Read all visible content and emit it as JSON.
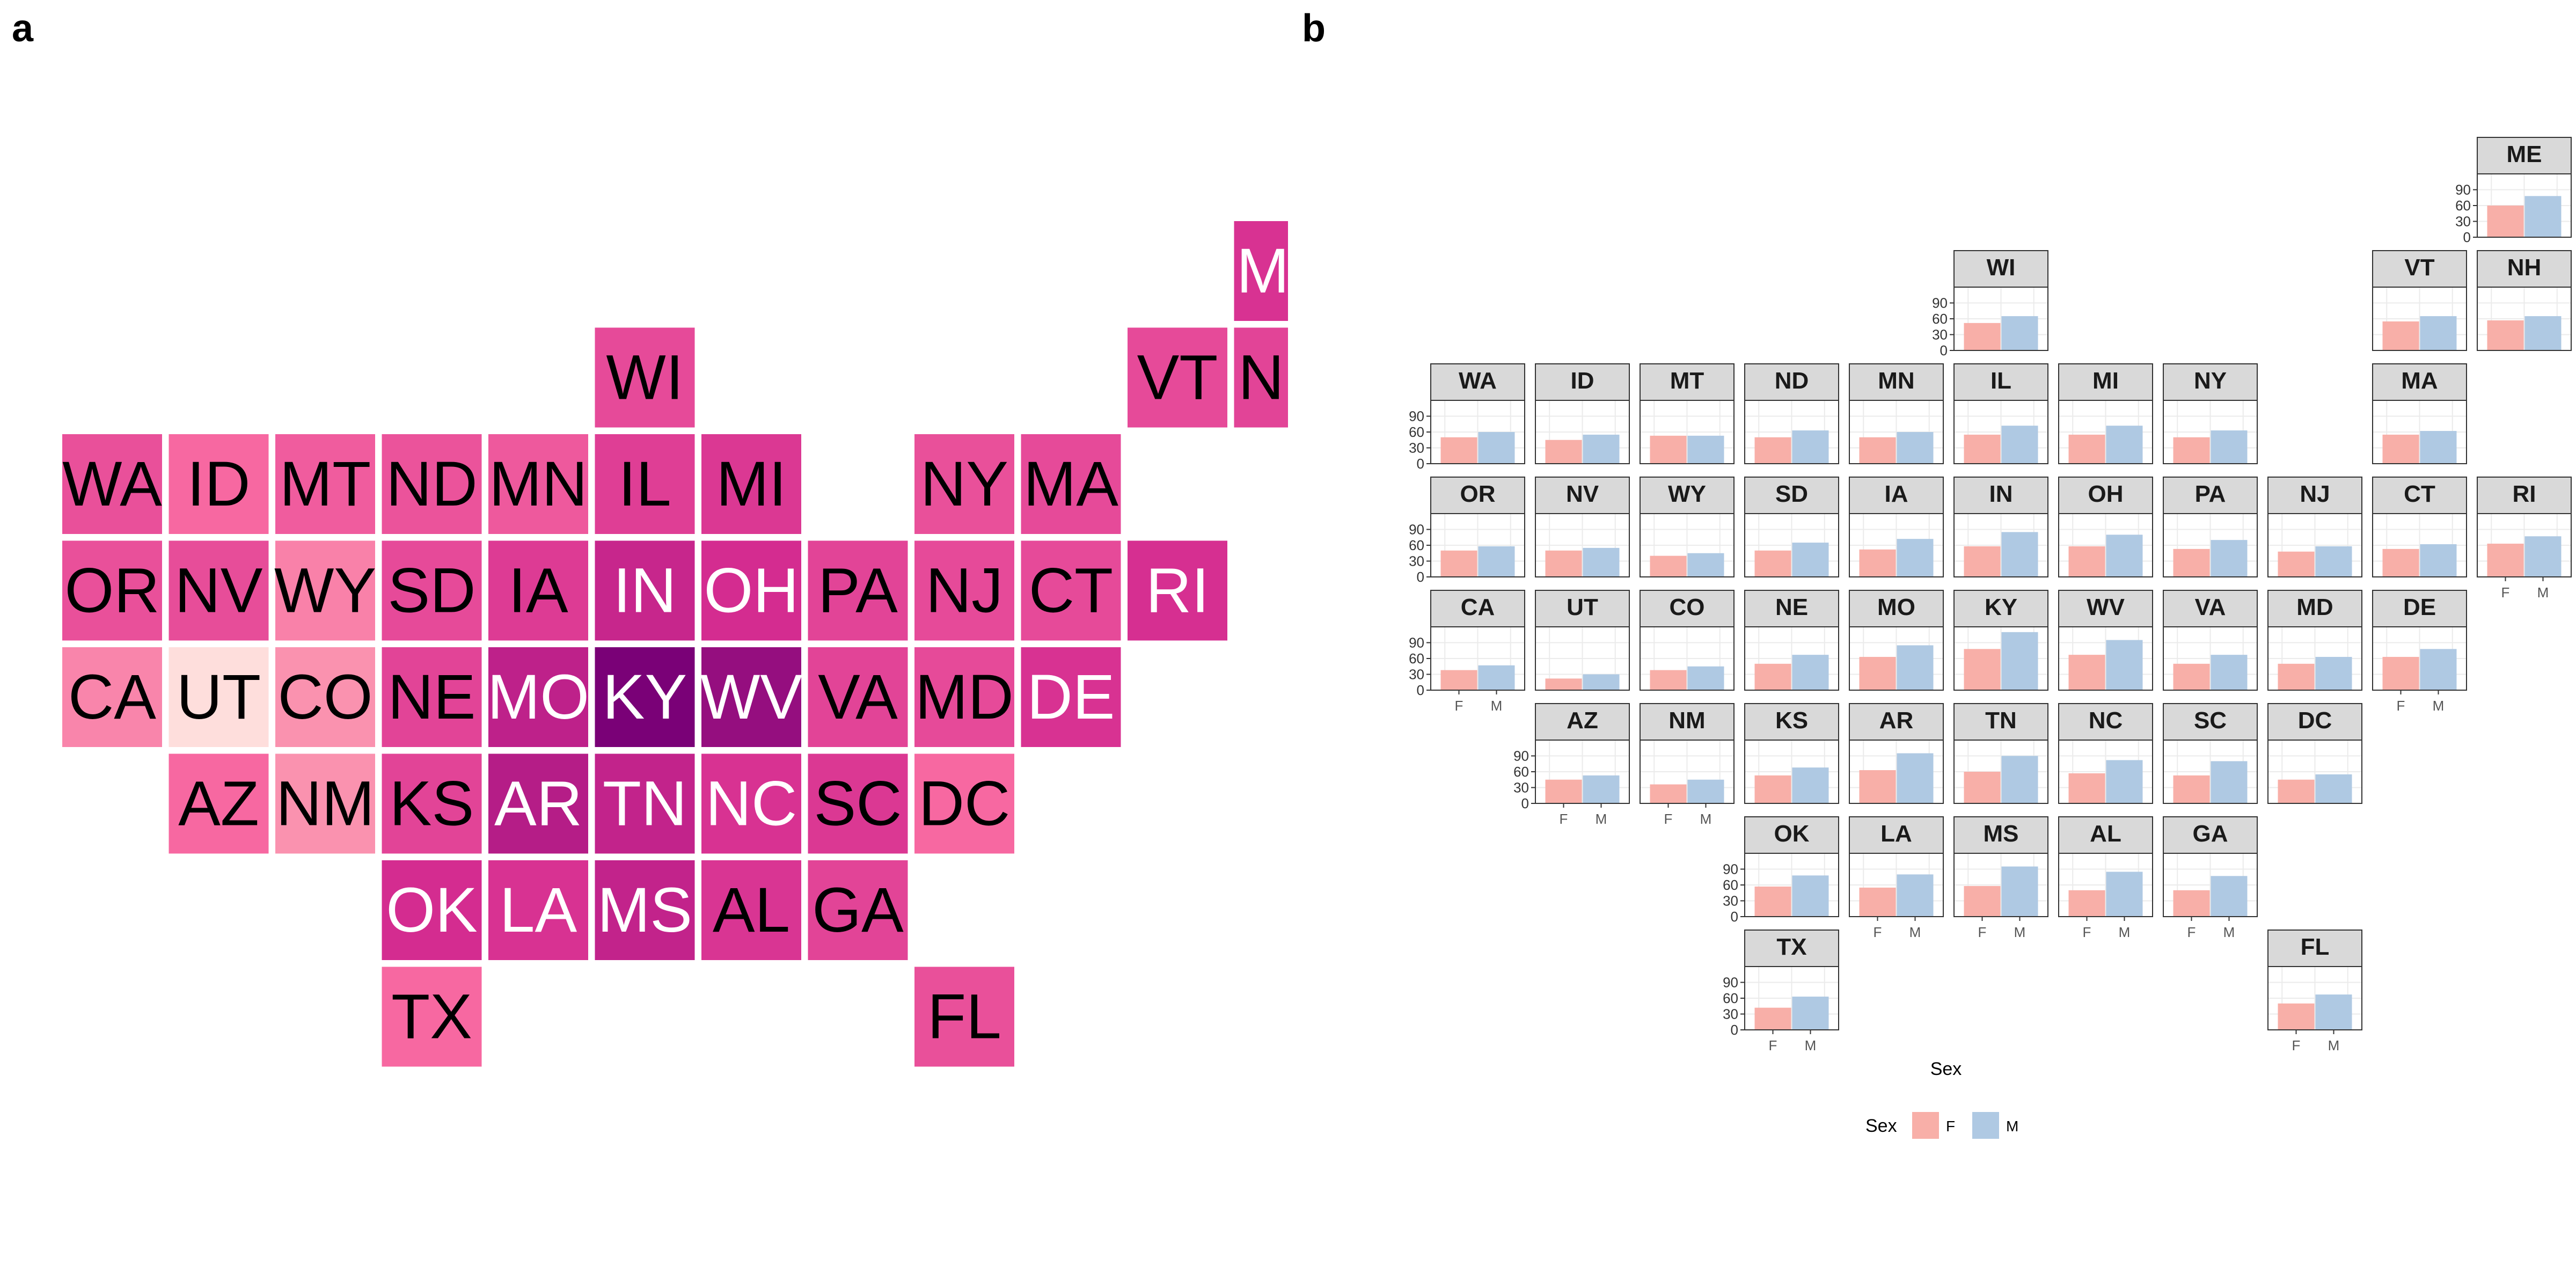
{
  "panel_labels": {
    "a": "a",
    "b": "b"
  },
  "colors": {
    "female": "#F8AFA8",
    "male": "#AFC9E3",
    "strip_bg": "#D9D9D9",
    "grid": "#EBEBEB"
  },
  "chart_data": [
    {
      "type": "heatmap",
      "panel": "a",
      "cells": [
        {
          "state": "ME",
          "col": 11,
          "row": 0,
          "value": 58
        },
        {
          "state": "WI",
          "col": 5,
          "row": 1,
          "value": 50
        },
        {
          "state": "VT",
          "col": 10,
          "row": 1,
          "value": 50
        },
        {
          "state": "NH",
          "col": 11,
          "row": 1,
          "value": 52
        },
        {
          "state": "WA",
          "col": 0,
          "row": 2,
          "value": 48
        },
        {
          "state": "ID",
          "col": 1,
          "row": 2,
          "value": 40
        },
        {
          "state": "MT",
          "col": 2,
          "row": 2,
          "value": 44
        },
        {
          "state": "ND",
          "col": 3,
          "row": 2,
          "value": 47
        },
        {
          "state": "MN",
          "col": 4,
          "row": 2,
          "value": 45
        },
        {
          "state": "IL",
          "col": 5,
          "row": 2,
          "value": 54
        },
        {
          "state": "MI",
          "col": 6,
          "row": 2,
          "value": 56
        },
        {
          "state": "NY",
          "col": 8,
          "row": 2,
          "value": 48
        },
        {
          "state": "MA",
          "col": 9,
          "row": 2,
          "value": 50
        },
        {
          "state": "OR",
          "col": 0,
          "row": 3,
          "value": 48
        },
        {
          "state": "NV",
          "col": 1,
          "row": 3,
          "value": 49
        },
        {
          "state": "WY",
          "col": 2,
          "row": 3,
          "value": 34
        },
        {
          "state": "SD",
          "col": 3,
          "row": 3,
          "value": 50
        },
        {
          "state": "IA",
          "col": 4,
          "row": 3,
          "value": 55
        },
        {
          "state": "IN",
          "col": 5,
          "row": 3,
          "value": 63
        },
        {
          "state": "OH",
          "col": 6,
          "row": 3,
          "value": 60
        },
        {
          "state": "PA",
          "col": 7,
          "row": 3,
          "value": 52
        },
        {
          "state": "NJ",
          "col": 8,
          "row": 3,
          "value": 50
        },
        {
          "state": "CT",
          "col": 9,
          "row": 3,
          "value": 50
        },
        {
          "state": "RI",
          "col": 10,
          "row": 3,
          "value": 59
        },
        {
          "state": "CA",
          "col": 0,
          "row": 4,
          "value": 33
        },
        {
          "state": "UT",
          "col": 1,
          "row": 4,
          "value": 8
        },
        {
          "state": "CO",
          "col": 2,
          "row": 4,
          "value": 30
        },
        {
          "state": "NE",
          "col": 3,
          "row": 4,
          "value": 52
        },
        {
          "state": "MO",
          "col": 4,
          "row": 4,
          "value": 65
        },
        {
          "state": "KY",
          "col": 5,
          "row": 4,
          "value": 80
        },
        {
          "state": "WV",
          "col": 6,
          "row": 4,
          "value": 74
        },
        {
          "state": "VA",
          "col": 7,
          "row": 4,
          "value": 52
        },
        {
          "state": "MD",
          "col": 8,
          "row": 4,
          "value": 50
        },
        {
          "state": "DE",
          "col": 9,
          "row": 4,
          "value": 58
        },
        {
          "state": "AZ",
          "col": 1,
          "row": 5,
          "value": 40
        },
        {
          "state": "NM",
          "col": 2,
          "row": 5,
          "value": 30
        },
        {
          "state": "KS",
          "col": 3,
          "row": 5,
          "value": 52
        },
        {
          "state": "AR",
          "col": 4,
          "row": 5,
          "value": 67
        },
        {
          "state": "TN",
          "col": 5,
          "row": 5,
          "value": 64
        },
        {
          "state": "NC",
          "col": 6,
          "row": 5,
          "value": 58
        },
        {
          "state": "SC",
          "col": 7,
          "row": 5,
          "value": 56
        },
        {
          "state": "DC",
          "col": 8,
          "row": 5,
          "value": 40
        },
        {
          "state": "OK",
          "col": 3,
          "row": 6,
          "value": 60
        },
        {
          "state": "LA",
          "col": 4,
          "row": 6,
          "value": 58
        },
        {
          "state": "MS",
          "col": 5,
          "row": 6,
          "value": 64
        },
        {
          "state": "AL",
          "col": 6,
          "row": 6,
          "value": 57
        },
        {
          "state": "GA",
          "col": 7,
          "row": 6,
          "value": 52
        },
        {
          "state": "TX",
          "col": 3,
          "row": 7,
          "value": 40
        },
        {
          "state": "FL",
          "col": 8,
          "row": 7,
          "value": 48
        }
      ],
      "value_range": [
        0,
        80
      ]
    },
    {
      "type": "bar",
      "panel": "b",
      "categories": [
        "F",
        "M"
      ],
      "xlabel": "Sex",
      "ylabel": "",
      "ylim": [
        0,
        120
      ],
      "yticks": [
        0,
        30,
        60,
        90
      ],
      "legend": {
        "title": "Sex",
        "entries": [
          "F",
          "M"
        ],
        "position": "bottom"
      },
      "facets": [
        {
          "state": "ME",
          "col": 10,
          "row": 0,
          "values": [
            60,
            78
          ],
          "show_y": true,
          "show_x": false
        },
        {
          "state": "WI",
          "col": 5,
          "row": 1,
          "values": [
            52,
            65
          ],
          "show_y": true,
          "show_x": false
        },
        {
          "state": "VT",
          "col": 9,
          "row": 1,
          "values": [
            55,
            65
          ],
          "show_y": false,
          "show_x": false
        },
        {
          "state": "NH",
          "col": 10,
          "row": 1,
          "values": [
            57,
            65
          ],
          "show_y": false,
          "show_x": false
        },
        {
          "state": "WA",
          "col": 0,
          "row": 2,
          "values": [
            50,
            60
          ],
          "show_y": true,
          "show_x": false
        },
        {
          "state": "ID",
          "col": 1,
          "row": 2,
          "values": [
            45,
            55
          ],
          "show_y": false,
          "show_x": false
        },
        {
          "state": "MT",
          "col": 2,
          "row": 2,
          "values": [
            53,
            53
          ],
          "show_y": false,
          "show_x": false
        },
        {
          "state": "ND",
          "col": 3,
          "row": 2,
          "values": [
            50,
            63
          ],
          "show_y": false,
          "show_x": false
        },
        {
          "state": "MN",
          "col": 4,
          "row": 2,
          "values": [
            50,
            60
          ],
          "show_y": false,
          "show_x": false
        },
        {
          "state": "IL",
          "col": 5,
          "row": 2,
          "values": [
            55,
            72
          ],
          "show_y": false,
          "show_x": false
        },
        {
          "state": "MI",
          "col": 6,
          "row": 2,
          "values": [
            55,
            72
          ],
          "show_y": false,
          "show_x": false
        },
        {
          "state": "NY",
          "col": 7,
          "row": 2,
          "values": [
            50,
            63
          ],
          "show_y": false,
          "show_x": false
        },
        {
          "state": "MA",
          "col": 9,
          "row": 2,
          "values": [
            55,
            62
          ],
          "show_y": false,
          "show_x": false
        },
        {
          "state": "OR",
          "col": 0,
          "row": 3,
          "values": [
            50,
            58
          ],
          "show_y": true,
          "show_x": false
        },
        {
          "state": "NV",
          "col": 1,
          "row": 3,
          "values": [
            50,
            55
          ],
          "show_y": false,
          "show_x": false
        },
        {
          "state": "WY",
          "col": 2,
          "row": 3,
          "values": [
            40,
            45
          ],
          "show_y": false,
          "show_x": false
        },
        {
          "state": "SD",
          "col": 3,
          "row": 3,
          "values": [
            50,
            65
          ],
          "show_y": false,
          "show_x": false
        },
        {
          "state": "IA",
          "col": 4,
          "row": 3,
          "values": [
            52,
            72
          ],
          "show_y": false,
          "show_x": false
        },
        {
          "state": "IN",
          "col": 5,
          "row": 3,
          "values": [
            58,
            85
          ],
          "show_y": false,
          "show_x": false
        },
        {
          "state": "OH",
          "col": 6,
          "row": 3,
          "values": [
            58,
            80
          ],
          "show_y": false,
          "show_x": false
        },
        {
          "state": "PA",
          "col": 7,
          "row": 3,
          "values": [
            53,
            70
          ],
          "show_y": false,
          "show_x": false
        },
        {
          "state": "NJ",
          "col": 8,
          "row": 3,
          "values": [
            48,
            58
          ],
          "show_y": false,
          "show_x": false
        },
        {
          "state": "CT",
          "col": 9,
          "row": 3,
          "values": [
            53,
            62
          ],
          "show_y": false,
          "show_x": false
        },
        {
          "state": "RI",
          "col": 10,
          "row": 3,
          "values": [
            63,
            77
          ],
          "show_y": false,
          "show_x": true
        },
        {
          "state": "CA",
          "col": 0,
          "row": 4,
          "values": [
            38,
            47
          ],
          "show_y": true,
          "show_x": true
        },
        {
          "state": "UT",
          "col": 1,
          "row": 4,
          "values": [
            22,
            30
          ],
          "show_y": false,
          "show_x": false
        },
        {
          "state": "CO",
          "col": 2,
          "row": 4,
          "values": [
            38,
            45
          ],
          "show_y": false,
          "show_x": false
        },
        {
          "state": "NE",
          "col": 3,
          "row": 4,
          "values": [
            50,
            67
          ],
          "show_y": false,
          "show_x": false
        },
        {
          "state": "MO",
          "col": 4,
          "row": 4,
          "values": [
            63,
            85
          ],
          "show_y": false,
          "show_x": false
        },
        {
          "state": "KY",
          "col": 5,
          "row": 4,
          "values": [
            78,
            110
          ],
          "show_y": false,
          "show_x": false
        },
        {
          "state": "WV",
          "col": 6,
          "row": 4,
          "values": [
            67,
            95
          ],
          "show_y": false,
          "show_x": false
        },
        {
          "state": "VA",
          "col": 7,
          "row": 4,
          "values": [
            50,
            67
          ],
          "show_y": false,
          "show_x": false
        },
        {
          "state": "MD",
          "col": 8,
          "row": 4,
          "values": [
            50,
            63
          ],
          "show_y": false,
          "show_x": false
        },
        {
          "state": "DE",
          "col": 9,
          "row": 4,
          "values": [
            63,
            78
          ],
          "show_y": false,
          "show_x": true
        },
        {
          "state": "AZ",
          "col": 1,
          "row": 5,
          "values": [
            45,
            53
          ],
          "show_y": true,
          "show_x": true
        },
        {
          "state": "NM",
          "col": 2,
          "row": 5,
          "values": [
            36,
            45
          ],
          "show_y": false,
          "show_x": true
        },
        {
          "state": "KS",
          "col": 3,
          "row": 5,
          "values": [
            53,
            68
          ],
          "show_y": false,
          "show_x": false
        },
        {
          "state": "AR",
          "col": 4,
          "row": 5,
          "values": [
            63,
            95
          ],
          "show_y": false,
          "show_x": false
        },
        {
          "state": "TN",
          "col": 5,
          "row": 5,
          "values": [
            60,
            90
          ],
          "show_y": false,
          "show_x": false
        },
        {
          "state": "NC",
          "col": 6,
          "row": 5,
          "values": [
            57,
            82
          ],
          "show_y": false,
          "show_x": false
        },
        {
          "state": "SC",
          "col": 7,
          "row": 5,
          "values": [
            53,
            80
          ],
          "show_y": false,
          "show_x": false
        },
        {
          "state": "DC",
          "col": 8,
          "row": 5,
          "values": [
            45,
            55
          ],
          "show_y": false,
          "show_x": false
        },
        {
          "state": "OK",
          "col": 3,
          "row": 6,
          "values": [
            57,
            78
          ],
          "show_y": true,
          "show_x": false
        },
        {
          "state": "LA",
          "col": 4,
          "row": 6,
          "values": [
            55,
            80
          ],
          "show_y": false,
          "show_x": true
        },
        {
          "state": "MS",
          "col": 5,
          "row": 6,
          "values": [
            58,
            95
          ],
          "show_y": false,
          "show_x": true
        },
        {
          "state": "AL",
          "col": 6,
          "row": 6,
          "values": [
            50,
            85
          ],
          "show_y": false,
          "show_x": true
        },
        {
          "state": "GA",
          "col": 7,
          "row": 6,
          "values": [
            50,
            77
          ],
          "show_y": false,
          "show_x": true
        },
        {
          "state": "TX",
          "col": 3,
          "row": 7,
          "values": [
            42,
            63
          ],
          "show_y": true,
          "show_x": true
        },
        {
          "state": "FL",
          "col": 8,
          "row": 7,
          "values": [
            50,
            67
          ],
          "show_y": false,
          "show_x": true
        }
      ]
    }
  ]
}
